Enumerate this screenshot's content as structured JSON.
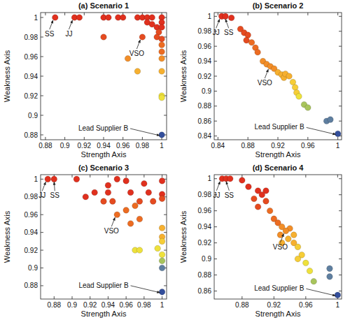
{
  "chart_data": [
    {
      "type": "scatter",
      "title": "(a) Scenario 1",
      "x_label": "Strength Axis",
      "y_label": "Weakness Axis",
      "xlim": [
        0.875,
        1.005
      ],
      "ylim": [
        0.875,
        1.005
      ],
      "xticks": [
        0.88,
        0.9,
        0.92,
        0.94,
        0.96,
        0.98,
        1
      ],
      "yticks": [
        0.88,
        0.9,
        0.92,
        0.94,
        0.96,
        0.98,
        1
      ],
      "series": [
        {
          "x": [
            0.89,
            0.91,
            0.915,
            0.94,
            0.945,
            0.955,
            0.96,
            0.975,
            0.98,
            0.985,
            0.99,
            1,
            0.985,
            0.99,
            0.995,
            1,
            1,
            0.997,
            0.995,
            0.94,
            0.98,
            1,
            1,
            1,
            0.965,
            1,
            0.975,
            1,
            1,
            1,
            1
          ],
          "values": [
            1,
            1,
            1,
            1,
            1,
            1,
            1,
            1,
            1,
            1,
            1,
            1,
            0.995,
            0.993,
            0.99,
            0.995,
            0.99,
            0.985,
            0.98,
            0.98,
            0.98,
            0.978,
            0.972,
            0.965,
            0.958,
            0.958,
            0.945,
            0.945,
            0.92,
            0.918,
            0.88
          ],
          "colors": [
            "#e0301e",
            "#e0301e",
            "#e0301e",
            "#e0301e",
            "#e0301e",
            "#e0301e",
            "#e0301e",
            "#e0301e",
            "#e0301e",
            "#e0301e",
            "#e0301e",
            "#e0301e",
            "#e0301e",
            "#e0301e",
            "#e0301e",
            "#e0301e",
            "#e0301e",
            "#e54b20",
            "#e54b20",
            "#e54b20",
            "#e54b20",
            "#e54b20",
            "#ec6c22",
            "#ec6c22",
            "#f28e28",
            "#f28e28",
            "#f6b030",
            "#f6b030",
            "#eee13c",
            "#eee13c",
            "#344f9c"
          ]
        }
      ],
      "annotations": [
        {
          "text": "SS",
          "x": 0.89,
          "y": 1
        },
        {
          "text": "JJ",
          "x": 0.91,
          "y": 1
        },
        {
          "text": "VSO",
          "x": 0.98,
          "y": 0.98
        },
        {
          "text": "Lead Supplier B",
          "x": 1,
          "y": 0.88
        }
      ]
    },
    {
      "type": "scatter",
      "title": "(b) Scenario 2",
      "x_label": "Strength Axis",
      "y_label": "Weakness Axis",
      "xlim": [
        0.835,
        1.005
      ],
      "ylim": [
        0.835,
        1.005
      ],
      "xticks": [
        0.84,
        0.88,
        0.92,
        0.96,
        1
      ],
      "yticks": [
        0.84,
        0.86,
        0.88,
        0.9,
        0.92,
        0.94,
        0.96,
        0.98,
        1
      ],
      "series": [
        {
          "x": [
            0.845,
            0.85,
            0.858,
            0.87,
            0.875,
            0.88,
            0.878,
            0.885,
            0.89,
            0.893,
            0.9,
            0.905,
            0.91,
            0.915,
            0.92,
            0.925,
            0.928,
            0.93,
            0.935,
            0.94,
            0.943,
            0.945,
            0.948,
            0.955,
            0.96,
            0.985,
            0.99,
            1
          ],
          "values": [
            1,
            1,
            0.998,
            0.983,
            0.978,
            0.975,
            0.968,
            0.965,
            0.958,
            0.952,
            0.94,
            0.936,
            0.933,
            0.93,
            0.925,
            0.922,
            0.918,
            0.923,
            0.92,
            0.912,
            0.905,
            0.898,
            0.893,
            0.882,
            0.878,
            0.86,
            0.862,
            0.843
          ],
          "colors": [
            "#e0301e",
            "#e0301e",
            "#e0301e",
            "#e54b20",
            "#e54b20",
            "#e54b20",
            "#e54b20",
            "#ec6c22",
            "#ec6c22",
            "#ec6c22",
            "#f28e28",
            "#f28e28",
            "#f28e28",
            "#f28e28",
            "#f6b030",
            "#f6b030",
            "#f6b030",
            "#f6b030",
            "#f6b030",
            "#f6cd36",
            "#f6cd36",
            "#f6cd36",
            "#eee13c",
            "#a8c45c",
            "#a8c45c",
            "#5f7fa0",
            "#5f7fa0",
            "#344f9c"
          ]
        }
      ],
      "annotations": [
        {
          "text": "JJ",
          "x": 0.845,
          "y": 1
        },
        {
          "text": "SS",
          "x": 0.85,
          "y": 1
        },
        {
          "text": "VSO",
          "x": 0.91,
          "y": 0.933
        },
        {
          "text": "Lead Supplier B",
          "x": 1,
          "y": 0.843
        }
      ]
    },
    {
      "type": "scatter",
      "title": "(c) Scenario 3",
      "x_label": "Strength Axis",
      "y_label": "Weakness Axis",
      "xlim": [
        0.865,
        1.005
      ],
      "ylim": [
        0.865,
        1.005
      ],
      "xticks": [
        0.88,
        0.9,
        0.92,
        0.94,
        0.96,
        0.98,
        1
      ],
      "yticks": [
        0.88,
        0.9,
        0.92,
        0.94,
        0.96,
        0.98,
        1
      ],
      "series": [
        {
          "x": [
            0.873,
            0.88,
            0.905,
            0.95,
            0.96,
            0.94,
            0.98,
            1,
            0.915,
            0.925,
            0.94,
            0.965,
            0.985,
            1,
            0.935,
            0.945,
            0.975,
            0.99,
            1,
            0.97,
            0.96,
            0.95,
            0.975,
            0.965,
            1,
            1,
            1,
            0.97,
            0.975,
            0.995,
            1,
            1,
            1,
            1
          ],
          "values": [
            1,
            1,
            1,
            1,
            0.998,
            0.993,
            0.995,
            0.998,
            0.98,
            0.985,
            0.985,
            0.985,
            0.985,
            0.983,
            0.975,
            0.975,
            0.975,
            0.975,
            0.978,
            0.97,
            0.965,
            0.96,
            0.955,
            0.95,
            0.945,
            0.935,
            0.93,
            0.92,
            0.92,
            0.922,
            0.915,
            0.908,
            0.9,
            0.873
          ],
          "colors": [
            "#e0301e",
            "#e0301e",
            "#e0301e",
            "#e0301e",
            "#e0301e",
            "#e0301e",
            "#e0301e",
            "#e0301e",
            "#e0301e",
            "#e0301e",
            "#e0301e",
            "#e0301e",
            "#e0301e",
            "#e0301e",
            "#e54b20",
            "#e54b20",
            "#e54b20",
            "#e54b20",
            "#e54b20",
            "#ec6c22",
            "#ec6c22",
            "#ec6c22",
            "#ec6c22",
            "#ec6c22",
            "#f6b030",
            "#f6b030",
            "#f6cd36",
            "#eee13c",
            "#eee13c",
            "#eee13c",
            "#eee13c",
            "#a8c45c",
            "#5f7fa0",
            "#344f9c"
          ]
        }
      ],
      "annotations": [
        {
          "text": "JJ",
          "x": 0.873,
          "y": 1
        },
        {
          "text": "SS",
          "x": 0.88,
          "y": 1
        },
        {
          "text": "VSO",
          "x": 0.95,
          "y": 0.96
        },
        {
          "text": "Lead Supplier B",
          "x": 1,
          "y": 0.873
        }
      ]
    },
    {
      "type": "scatter",
      "title": "(d) Scenario 4",
      "x_label": "Strength Axis",
      "y_label": "Weakness Axis",
      "xlim": [
        0.845,
        1.005
      ],
      "ylim": [
        0.85,
        1.005
      ],
      "xticks": [
        0.88,
        0.92,
        0.96,
        1
      ],
      "yticks": [
        0.86,
        0.88,
        0.9,
        0.92,
        0.94,
        0.96,
        0.98,
        1
      ],
      "series": [
        {
          "x": [
            0.855,
            0.86,
            0.865,
            0.88,
            0.888,
            0.9,
            0.91,
            0.905,
            0.895,
            0.91,
            0.9,
            0.915,
            0.92,
            0.925,
            0.93,
            0.94,
            0.935,
            0.928,
            0.945,
            0.938,
            0.93,
            0.945,
            0.95,
            0.955,
            0.95,
            0.96,
            0.965,
            0.97,
            0.99,
            0.99,
            1
          ],
          "values": [
            1,
            1,
            1,
            0.998,
            0.99,
            0.985,
            0.985,
            0.98,
            0.975,
            0.972,
            0.965,
            0.96,
            0.95,
            0.945,
            0.94,
            0.938,
            0.935,
            0.93,
            0.93,
            0.925,
            0.92,
            0.92,
            0.915,
            0.905,
            0.9,
            0.895,
            0.885,
            0.872,
            0.888,
            0.878,
            0.855
          ],
          "colors": [
            "#e0301e",
            "#e0301e",
            "#e0301e",
            "#e0301e",
            "#e0301e",
            "#e0301e",
            "#e0301e",
            "#e0301e",
            "#e54b20",
            "#e54b20",
            "#e54b20",
            "#ec6c22",
            "#ec6c22",
            "#ec6c22",
            "#f28e28",
            "#f28e28",
            "#f28e28",
            "#f28e28",
            "#f6b030",
            "#f6b030",
            "#f6b030",
            "#f6b030",
            "#f6cd36",
            "#f6cd36",
            "#f6cd36",
            "#eee13c",
            "#eee13c",
            "#a8c45c",
            "#5f7fa0",
            "#5f7fa0",
            "#344f9c"
          ]
        }
      ],
      "annotations": [
        {
          "text": "JJ",
          "x": 0.855,
          "y": 1
        },
        {
          "text": "SS",
          "x": 0.86,
          "y": 1
        },
        {
          "text": "VSO",
          "x": 0.935,
          "y": 0.935
        },
        {
          "text": "Lead Supplier B",
          "x": 1,
          "y": 0.855
        }
      ]
    }
  ]
}
